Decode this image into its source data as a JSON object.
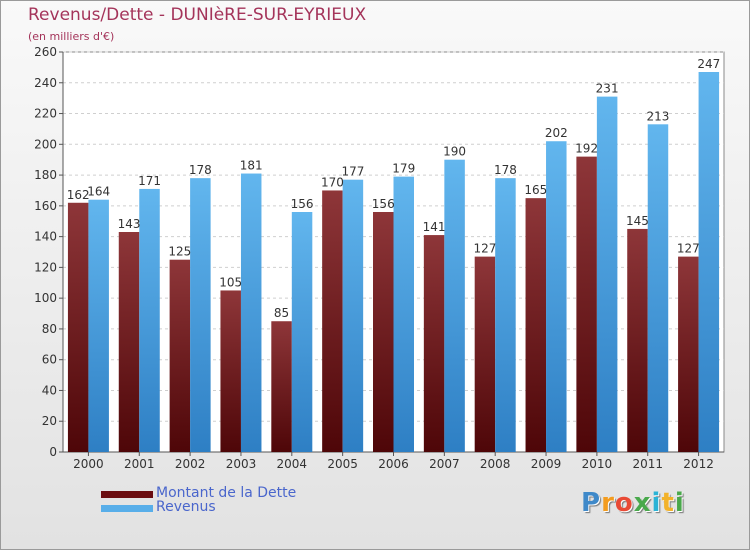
{
  "title": "Revenus/Dette - DUNIèRE-SUR-EYRIEUX",
  "subtitle": "(en milliers d'€)",
  "logo": {
    "letters": [
      "P",
      "r",
      "o",
      "x",
      "i",
      "t",
      "i"
    ],
    "colors": [
      "#3f89c9",
      "#f39c1f",
      "#e94a35",
      "#49a94c",
      "#2bb3d6",
      "#f2b22a",
      "#4aa84b"
    ]
  },
  "colors": {
    "dette": "#6b0d10",
    "dette_light": "#8e3639",
    "revenus": "#58aee9",
    "revenus_dark": "#2f82c8",
    "title": "#a4345a",
    "legend_text": "#4a66cc"
  },
  "chart_data": {
    "type": "bar",
    "categories": [
      "2000",
      "2001",
      "2002",
      "2003",
      "2004",
      "2005",
      "2006",
      "2007",
      "2008",
      "2009",
      "2010",
      "2011",
      "2012"
    ],
    "series": [
      {
        "name": "Montant de la Dette",
        "values": [
          162,
          143,
          125,
          105,
          85,
          170,
          156,
          141,
          127,
          165,
          192,
          145,
          127
        ]
      },
      {
        "name": "Revenus",
        "values": [
          164,
          171,
          178,
          181,
          156,
          177,
          179,
          190,
          178,
          202,
          231,
          213,
          247
        ]
      }
    ],
    "yticks": [
      0,
      20,
      40,
      60,
      80,
      100,
      120,
      140,
      160,
      180,
      200,
      220,
      240,
      260
    ],
    "ylim": [
      0,
      260
    ],
    "grid": true,
    "legend_position": "bottom-left"
  }
}
